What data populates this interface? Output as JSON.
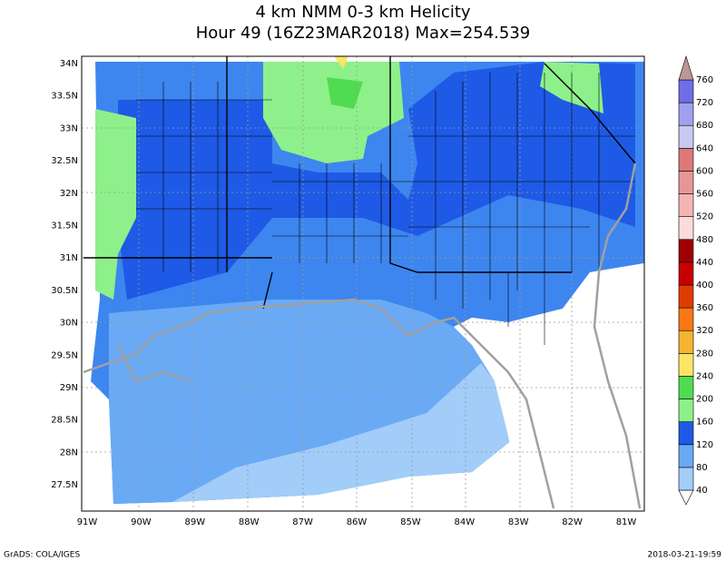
{
  "title": [
    "4 km NMM 0-3 km Helicity",
    "Hour 49 (16Z23MAR2018) Max=254.539"
  ],
  "map": {
    "lat_labels": [
      "34N",
      "33.5N",
      "33N",
      "32.5N",
      "32N",
      "31.5N",
      "31N",
      "30.5N",
      "30N",
      "29.5N",
      "29N",
      "28.5N",
      "28N",
      "27.5N"
    ],
    "lon_labels": [
      "91W",
      "90W",
      "89W",
      "88W",
      "87W",
      "86W",
      "85W",
      "84W",
      "83W",
      "82W",
      "81W"
    ]
  },
  "colorbar": {
    "levels": [
      40,
      80,
      120,
      160,
      200,
      240,
      280,
      320,
      360,
      400,
      440,
      480,
      520,
      560,
      600,
      640,
      680,
      720,
      760
    ],
    "colors": [
      "#ffffff",
      "#a2cdf8",
      "#6aaaf5",
      "#1e5ae6",
      "#8ef08a",
      "#50dc50",
      "#fae664",
      "#f5b432",
      "#fa7814",
      "#e13c00",
      "#c80000",
      "#a00000",
      "#fadcdc",
      "#f5b4b4",
      "#e69696",
      "#dc7878",
      "#c8c8f0",
      "#a0a0f0",
      "#6e6ee6",
      "#be9696"
    ]
  },
  "footer": {
    "left": "GrADS: COLA/IGES",
    "right": "2018-03-21-19:59"
  }
}
